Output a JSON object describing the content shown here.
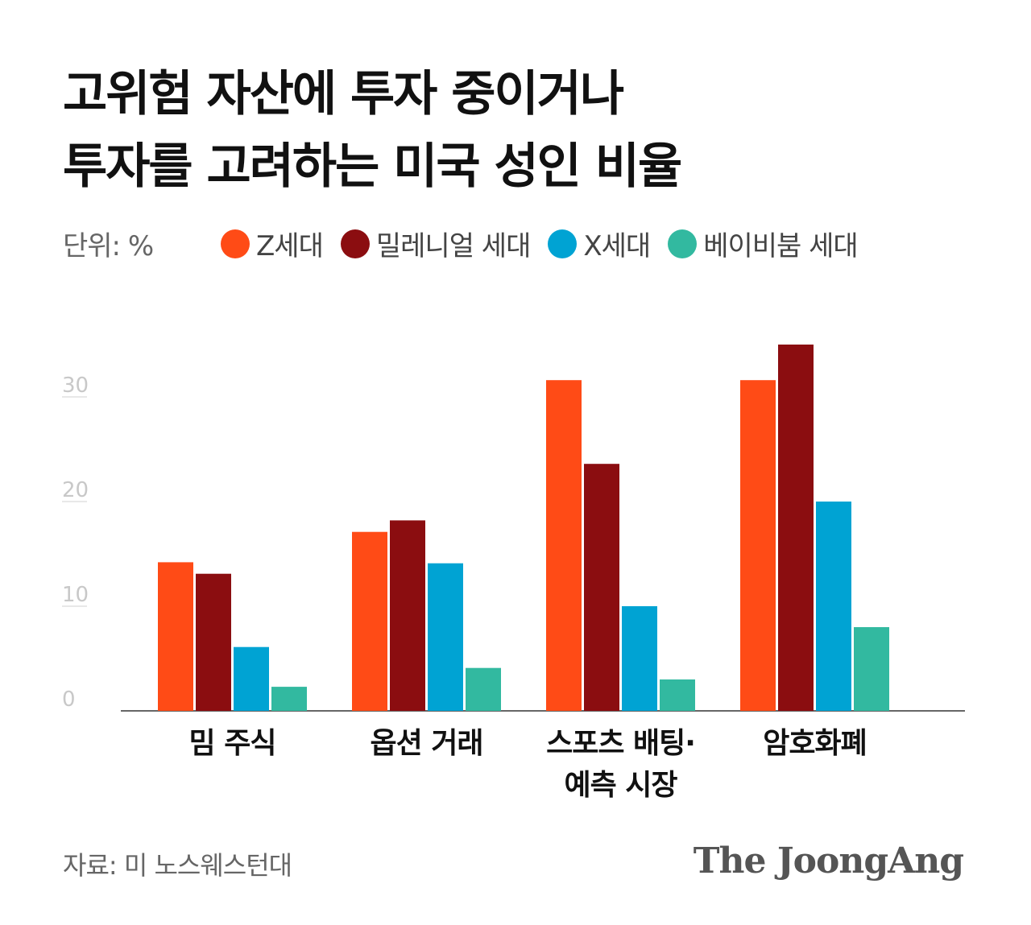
{
  "header": {
    "title_line1": "고위험 자산에 투자 중이거나",
    "title_line2": "투자를 고려하는 미국 성인 비율",
    "unit": "단위: %"
  },
  "chart_data": {
    "type": "bar",
    "title": "고위험 자산에 투자 중이거나 투자를 고려하는 미국 성인 비율",
    "ylabel": "",
    "xlabel": "",
    "ylim": [
      0,
      35
    ],
    "yticks": [
      0,
      10,
      20,
      30
    ],
    "grid": false,
    "legend": "top",
    "categories": [
      [
        "밈 주식"
      ],
      [
        "옵션 거래"
      ],
      [
        "스포츠 배팅·",
        "예측 시장"
      ],
      [
        "암호화폐"
      ]
    ],
    "series": [
      {
        "name": "Z세대",
        "color": "#ff4b16",
        "values": [
          14.2,
          17.1,
          31.6,
          31.6
        ]
      },
      {
        "name": "밀레니얼 세대",
        "color": "#8b0d10",
        "values": [
          13.1,
          18.2,
          23.6,
          35.0
        ]
      },
      {
        "name": "X세대",
        "color": "#00a3d3",
        "values": [
          6.1,
          14.1,
          10.0,
          20.0
        ]
      },
      {
        "name": "베이비붐 세대",
        "color": "#32b9a0",
        "values": [
          2.3,
          4.1,
          3.0,
          8.0
        ]
      }
    ]
  },
  "footer": {
    "source": "자료: 미 노스웨스턴대",
    "logo": "The JoongAng"
  }
}
